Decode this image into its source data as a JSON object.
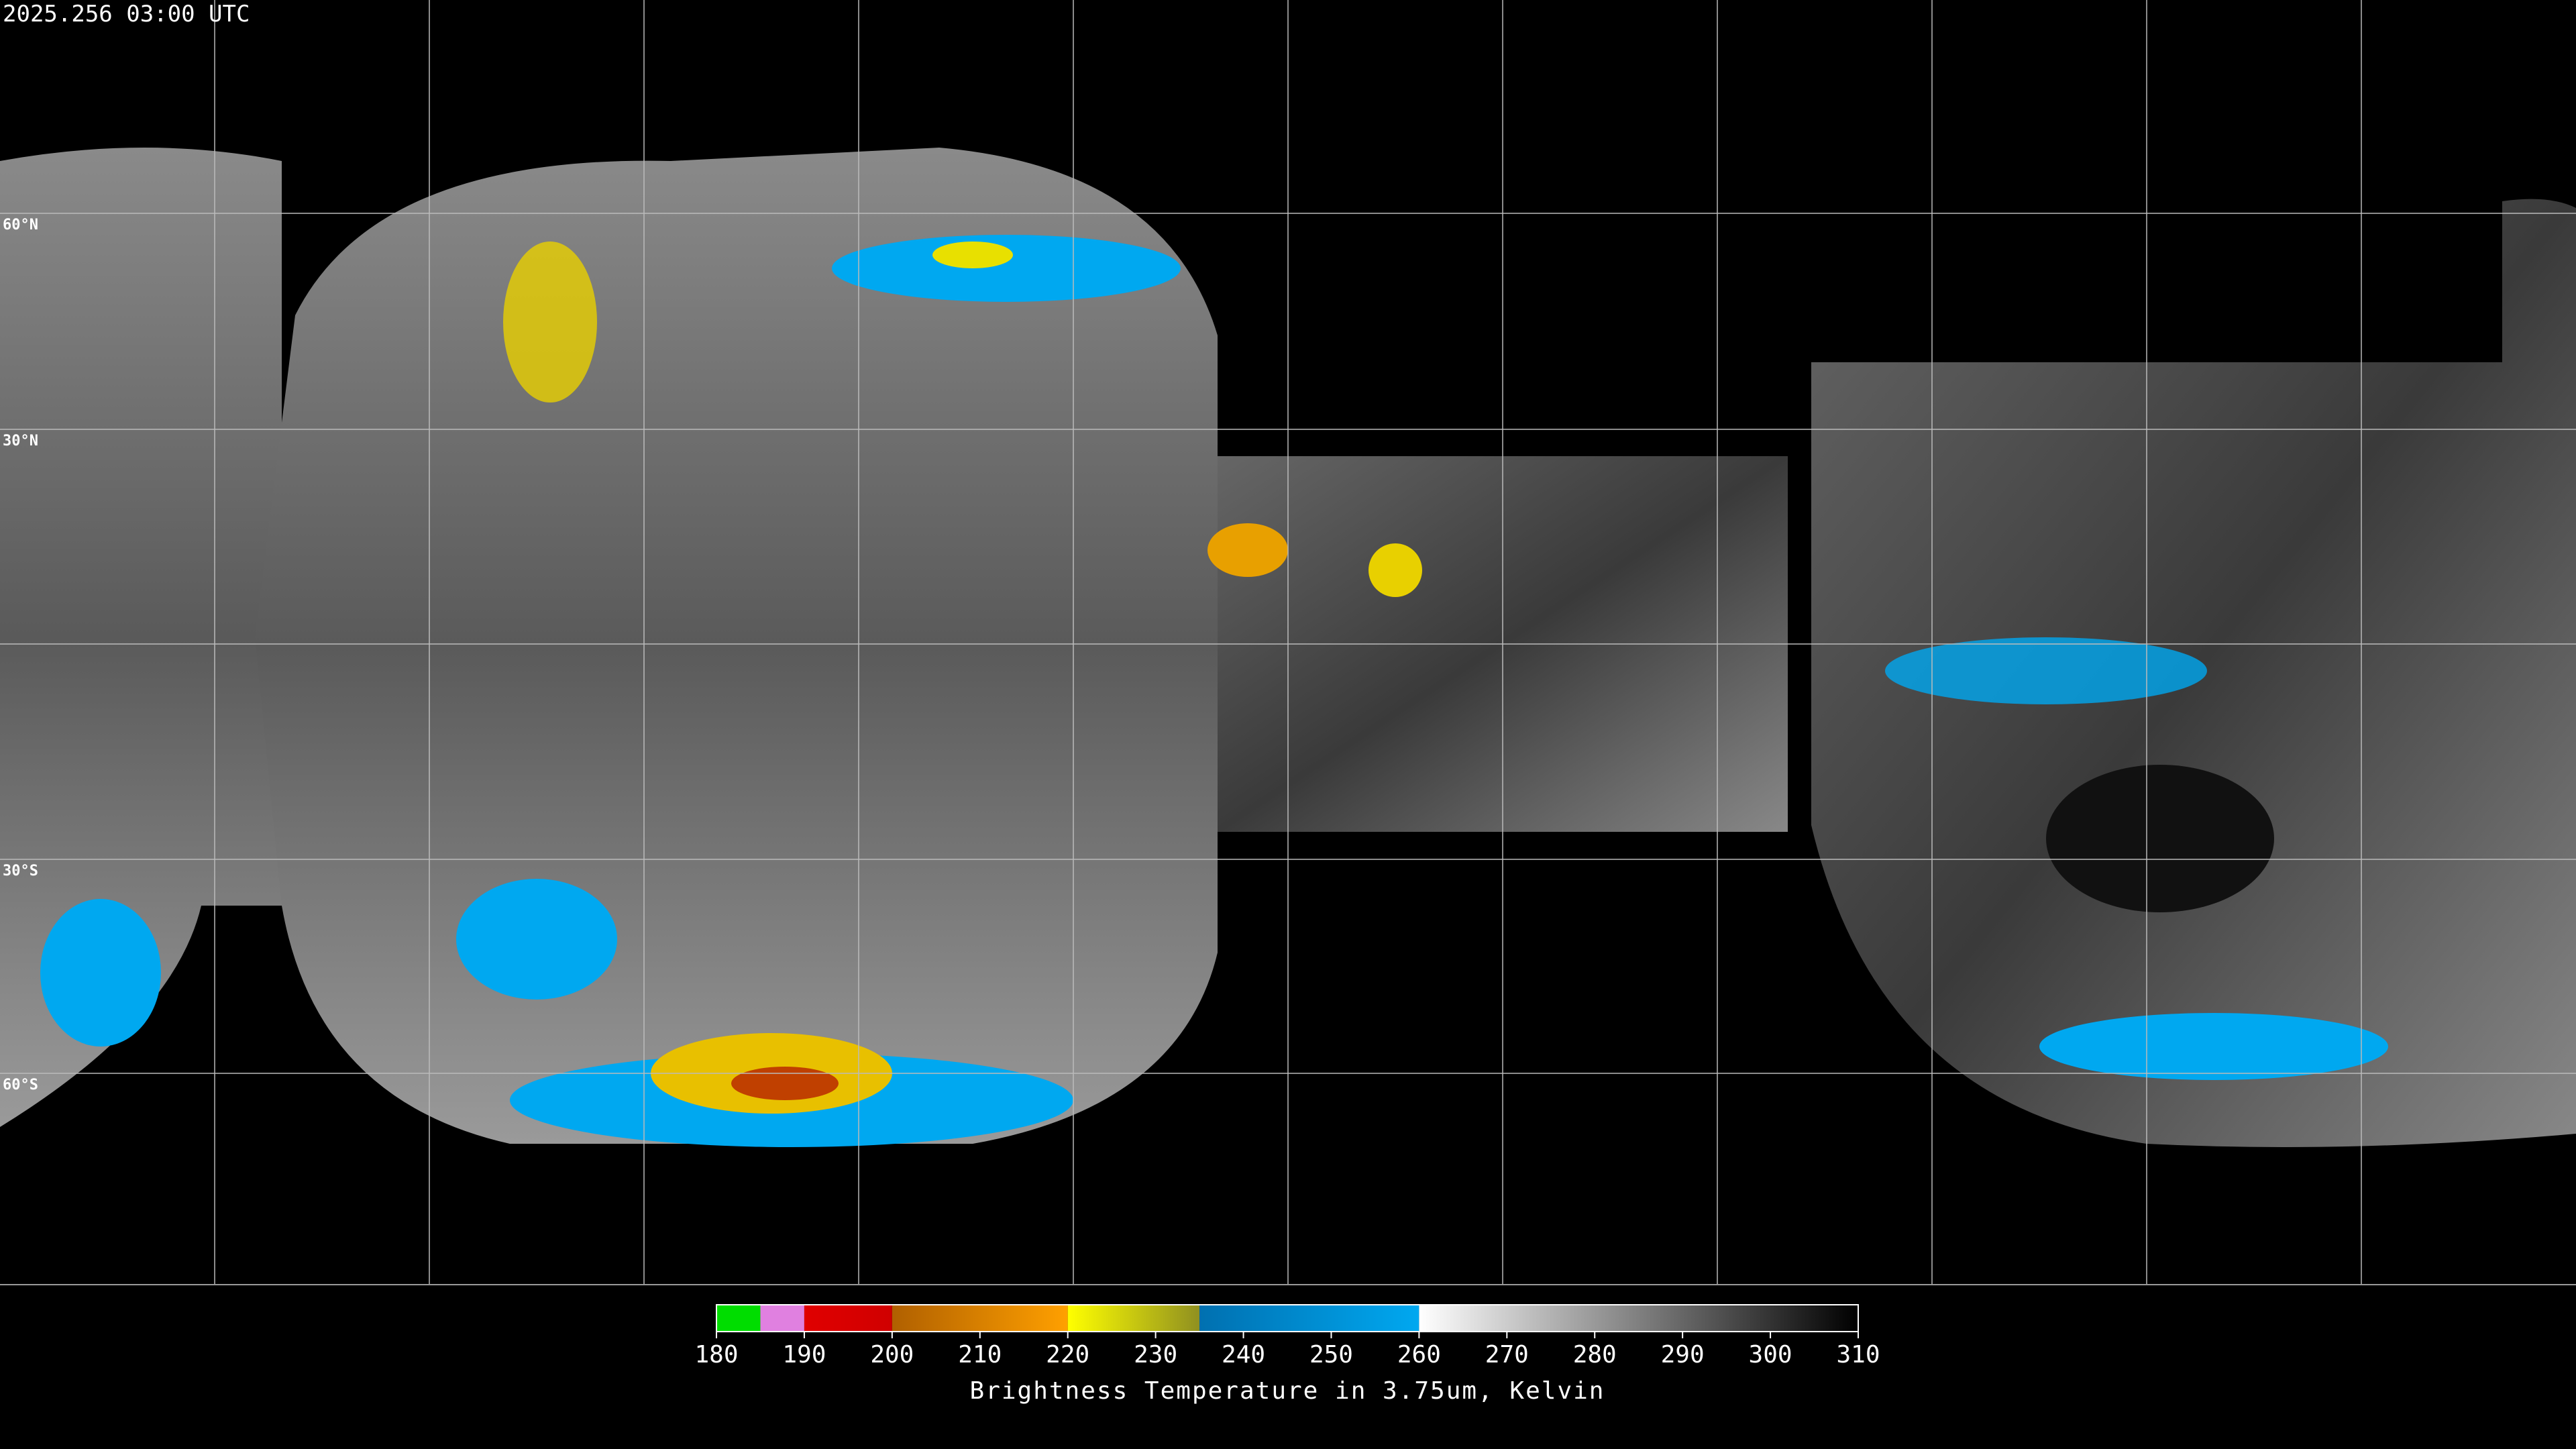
{
  "timestamp": "2025.256 03:00 UTC",
  "latitude_labels": [
    "60°N",
    "30°N",
    "30°S",
    "60°S"
  ],
  "colorbar": {
    "range": [
      180,
      310
    ],
    "ticks": [
      180,
      190,
      200,
      210,
      220,
      230,
      240,
      250,
      260,
      270,
      280,
      290,
      300,
      310
    ],
    "label": "Brightness Temperature in 3.75um, Kelvin",
    "segments": [
      {
        "from": 180,
        "to": 185,
        "color": "#00dd00",
        "color_end": "#00dd00"
      },
      {
        "from": 185,
        "to": 190,
        "color": "#e080e0",
        "color_end": "#e080e0"
      },
      {
        "from": 190,
        "to": 200,
        "color": "#e00000",
        "color_end": "#d00000"
      },
      {
        "from": 200,
        "to": 220,
        "color": "#b06000",
        "color_end": "#ffa000"
      },
      {
        "from": 220,
        "to": 235,
        "color": "#ffff00",
        "color_end": "#909020"
      },
      {
        "from": 235,
        "to": 260,
        "color": "#0070b0",
        "color_end": "#00a8f0"
      },
      {
        "from": 260,
        "to": 310,
        "color": "#ffffff",
        "color_end": "#000000"
      }
    ]
  }
}
